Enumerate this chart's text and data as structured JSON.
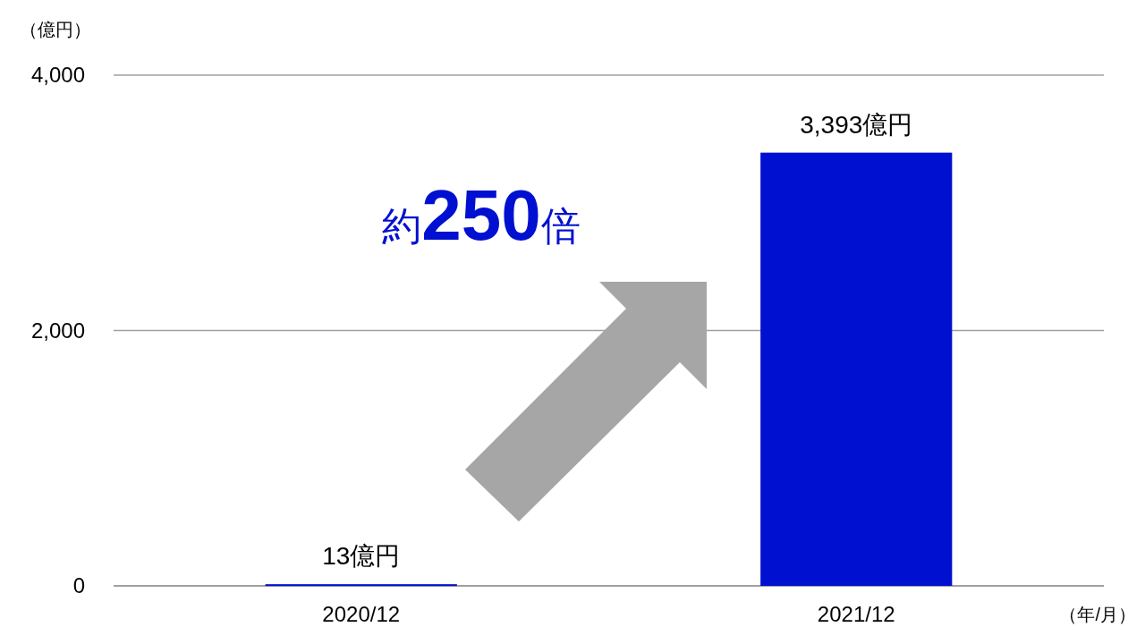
{
  "chart_data": {
    "type": "bar",
    "ylabel": "（億円）",
    "xlabel": "（年/月）",
    "categories": [
      "2020/12",
      "2021/12"
    ],
    "values": [
      13,
      3393
    ],
    "color": "#0010d0",
    "value_labels": [
      "13億円",
      "3,393億円"
    ],
    "ylim": [
      0,
      4000
    ],
    "yticks": [
      {
        "value": 0,
        "label": "0"
      },
      {
        "value": 2000,
        "label": "2,000"
      },
      {
        "value": 4000,
        "label": "4,000"
      }
    ],
    "grid": "y",
    "annotations": [
      "約250倍"
    ]
  }
}
